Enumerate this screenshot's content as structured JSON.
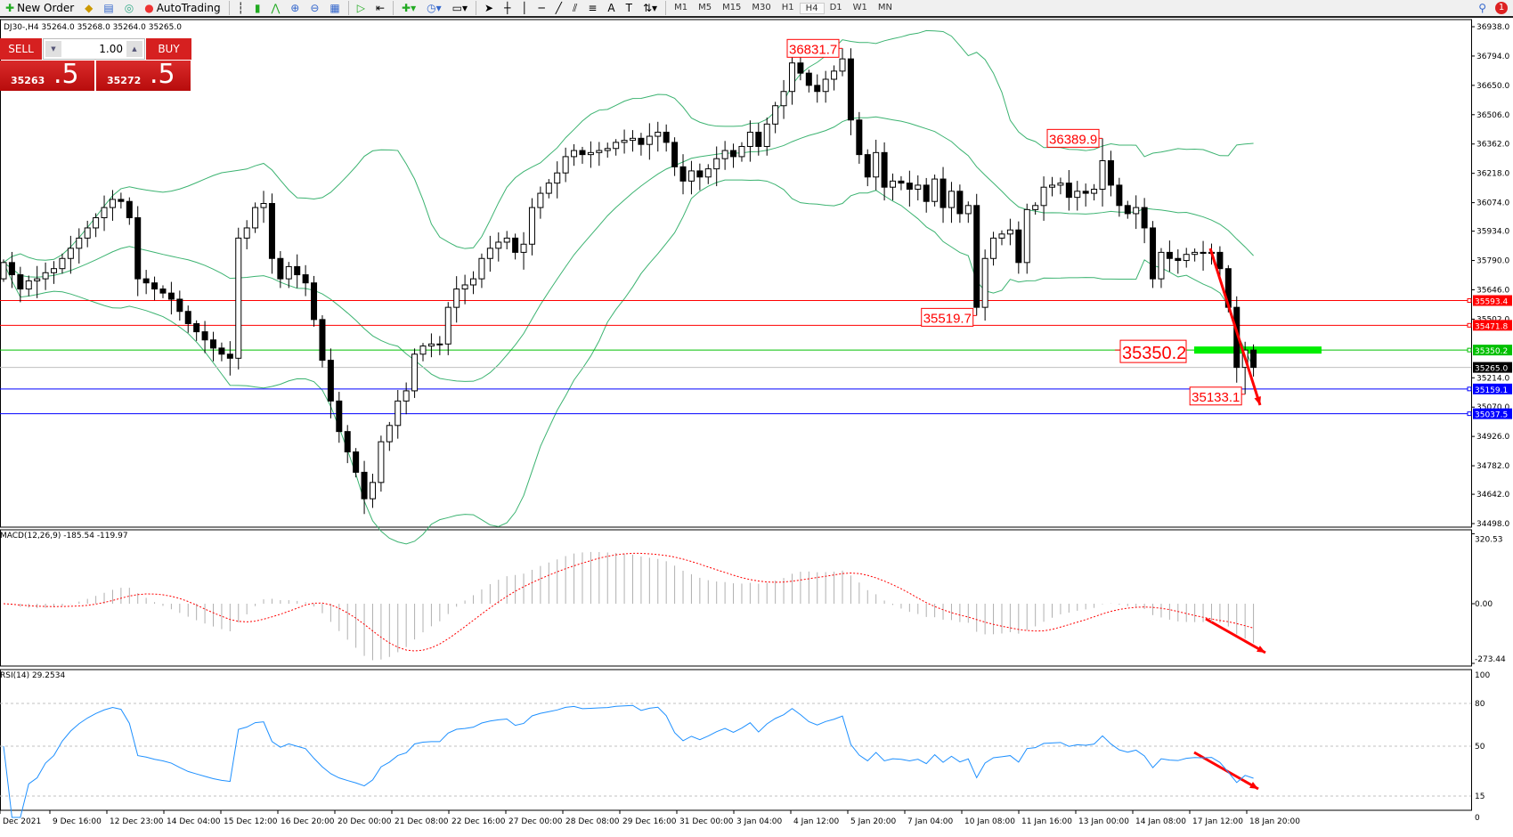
{
  "toolbar": {
    "new_order": "New Order",
    "auto_trading": "AutoTrading",
    "timeframes": [
      "M1",
      "M5",
      "M15",
      "M30",
      "H1",
      "H4",
      "D1",
      "W1",
      "MN"
    ],
    "active_timeframe": "H4",
    "notification_count": "1"
  },
  "chart": {
    "info": "DJ30-,H4  35264.0 35268.0 35264.0 35265.0",
    "symbol": "DJ30-",
    "timeframe": "H4"
  },
  "trade_panel": {
    "sell_label": "SELL",
    "buy_label": "BUY",
    "lot": "1.00",
    "sell_main": "35263",
    "sell_big": ".5",
    "buy_main": "35272",
    "buy_big": ".5"
  },
  "colors": {
    "bull": "#ffffff",
    "bear": "#000000",
    "bands": "#3cb371",
    "resistance": "#ff0000",
    "support": "#0000ff",
    "pivot": "#00dd00",
    "current": "#c0c0c0",
    "macd_signal": "#ff0000",
    "rsi": "#1e90ff",
    "arrow": "#ff0000"
  },
  "price_axis": [
    "36938.0",
    "36794.0",
    "36650.0",
    "36506.0",
    "36362.0",
    "36218.0",
    "36074.0",
    "35934.0",
    "35790.0",
    "35646.0",
    "35502.0",
    "35214.0",
    "35070.0",
    "34926.0",
    "34782.0",
    "34642.0",
    "34498.0"
  ],
  "levels": [
    {
      "price": 35593.4,
      "label": "35593.4",
      "color": "#ff0000"
    },
    {
      "price": 35471.8,
      "label": "35471.8",
      "color": "#ff0000"
    },
    {
      "price": 35350.2,
      "label": "35350.2",
      "color": "#00c000"
    },
    {
      "price": 35265.0,
      "label": "35265.0",
      "color": "#000000"
    },
    {
      "price": 35159.1,
      "label": "35159.1",
      "color": "#0000ff"
    },
    {
      "price": 35037.5,
      "label": "35037.5",
      "color": "#0000ff"
    }
  ],
  "annotations": [
    {
      "text": "36831.7",
      "price": 36831.7
    },
    {
      "text": "36389.9",
      "price": 36389.9
    },
    {
      "text": "35519.7",
      "price": 35519.7
    },
    {
      "text": "35350.2",
      "price": 35350.2
    },
    {
      "text": "35133.1",
      "price": 35133.1
    }
  ],
  "closes": [
    35780,
    35720,
    35650,
    35690,
    35700,
    35730,
    35750,
    35800,
    35850,
    35900,
    35950,
    36000,
    36050,
    36090,
    36080,
    36000,
    35700,
    35680,
    35650,
    35630,
    35600,
    35540,
    35480,
    35440,
    35400,
    35360,
    35330,
    35310,
    35900,
    35950,
    36050,
    36070,
    35800,
    35700,
    35760,
    35720,
    35680,
    35500,
    35300,
    35100,
    34950,
    34850,
    34750,
    34620,
    34700,
    34900,
    34980,
    35100,
    35150,
    35330,
    35370,
    35380,
    35380,
    35560,
    35650,
    35670,
    35700,
    35800,
    35850,
    35880,
    35900,
    35830,
    35870,
    36050,
    36120,
    36170,
    36220,
    36300,
    36330,
    36310,
    36320,
    36330,
    36340,
    36370,
    36380,
    36390,
    36360,
    36400,
    36420,
    36370,
    36250,
    36180,
    36230,
    36200,
    36240,
    36290,
    36330,
    36300,
    36350,
    36420,
    36350,
    36460,
    36550,
    36620,
    36760,
    36710,
    36650,
    36620,
    36680,
    36720,
    36780,
    36480,
    36310,
    36200,
    36320,
    36150,
    36180,
    36170,
    36140,
    36160,
    36080,
    36190,
    36050,
    36130,
    36020,
    36060,
    35560,
    35800,
    35900,
    35920,
    35940,
    35780,
    36040,
    36060,
    36150,
    36160,
    36170,
    36100,
    36130,
    36120,
    36140,
    36280,
    36160,
    36060,
    36020,
    36050,
    35950,
    35700,
    35830,
    35800,
    35790,
    35820,
    35830,
    35825,
    35830,
    35750,
    35560,
    35265,
    35350,
    35265
  ],
  "macd": {
    "label": "MACD(12,26,9) -185.54 -119.97",
    "axis": [
      "320.53",
      "0.00",
      "-273.44"
    ]
  },
  "rsi": {
    "label": "RSI(14) 29.2534",
    "axis": [
      "100",
      "80",
      "50",
      "15",
      "0"
    ],
    "levels": [
      80,
      50,
      15
    ]
  },
  "time_axis": [
    "Dec 2021",
    "9 Dec 16:00",
    "12 Dec 23:00",
    "14 Dec 04:00",
    "15 Dec 12:00",
    "16 Dec 20:00",
    "20 Dec 00:00",
    "21 Dec 08:00",
    "22 Dec 16:00",
    "27 Dec 00:00",
    "28 Dec 08:00",
    "29 Dec 16:00",
    "31 Dec 00:00",
    "3 Jan 04:00",
    "4 Jan 12:00",
    "5 Jan 20:00",
    "7 Jan 04:00",
    "10 Jan 08:00",
    "11 Jan 16:00",
    "13 Jan 00:00",
    "14 Jan 08:00",
    "17 Jan 12:00",
    "18 Jan 20:00"
  ]
}
